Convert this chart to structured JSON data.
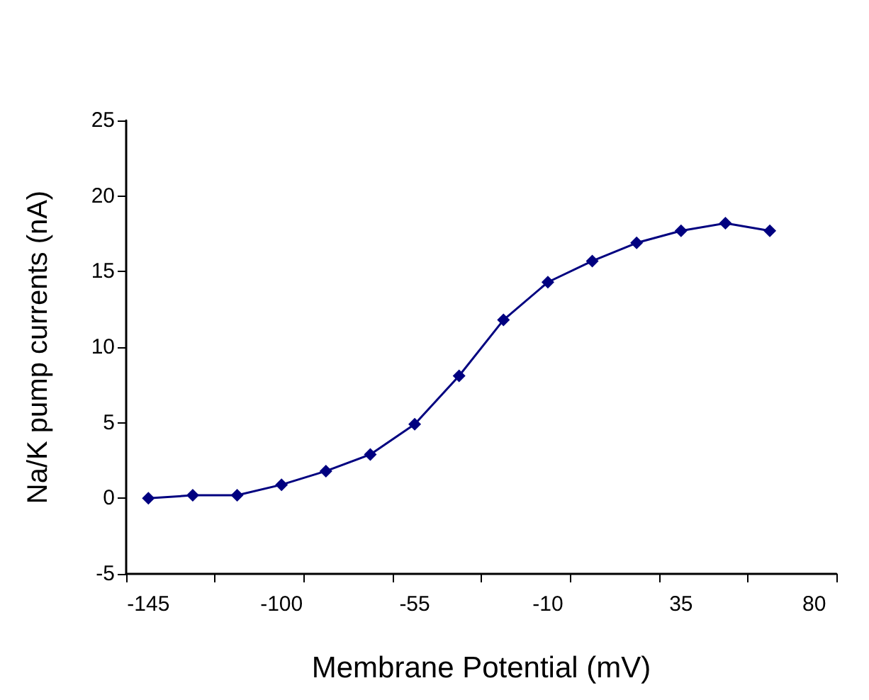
{
  "chart_data": {
    "type": "line",
    "xlabel": "Membrane Potential (mV)",
    "ylabel": "Na/K pump currents (nA)",
    "x": [
      -145,
      -130,
      -115,
      -100,
      -85,
      -70,
      -55,
      -40,
      -25,
      -10,
      5,
      20,
      35,
      50,
      65
    ],
    "series": [
      {
        "color": "#000080",
        "values": [
          0,
          0.2,
          0.2,
          0.9,
          1.8,
          2.9,
          4.9,
          8.1,
          11.8,
          14.3,
          15.7,
          16.9,
          17.7,
          18.2,
          17.7
        ]
      }
    ],
    "xlim": [
      -152.5,
      87.5
    ],
    "xticks": [
      {
        "value": -152.5,
        "label": null
      },
      {
        "value": -122.5,
        "label": null
      },
      {
        "value": -92.5,
        "label": null
      },
      {
        "value": -62.5,
        "label": null
      },
      {
        "value": -32.5,
        "label": null
      },
      {
        "value": -2.5,
        "label": null
      },
      {
        "value": 27.5,
        "label": null
      },
      {
        "value": 57.5,
        "label": null
      },
      {
        "value": 87.5,
        "label": null
      },
      -145,
      -100,
      -55,
      -10,
      35,
      80
    ],
    "ylim": [
      -5,
      25
    ],
    "yticks": [
      -5,
      0,
      5,
      10,
      15,
      20,
      25
    ],
    "grid": false,
    "marker": "diamond",
    "line_style": "solid"
  }
}
